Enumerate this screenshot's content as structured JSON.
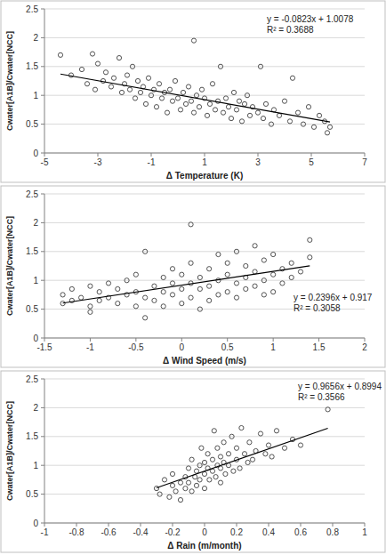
{
  "chart_data": [
    {
      "type": "scatter",
      "x_label": "Δ Temperature (K)",
      "y_label": "Cwater[A1B]/Cwater[NCC]",
      "marker": "circle-open",
      "color": "#404040",
      "grid": true,
      "xlim": [
        -5,
        7
      ],
      "xticks": [
        -5,
        -3,
        -1,
        1,
        3,
        5,
        7
      ],
      "ylim": [
        0,
        2.5
      ],
      "yticks": [
        0,
        0.5,
        1,
        1.5,
        2,
        2.5
      ],
      "trendline": {
        "slope": -0.0823,
        "intercept": 1.0078
      },
      "annotations": [
        "y = -0.0823x + 1.0078",
        "R² = 0.3688"
      ],
      "x": [
        -4.4,
        -4.0,
        -3.6,
        -3.4,
        -3.2,
        -3.1,
        -3.0,
        -2.8,
        -2.7,
        -2.5,
        -2.4,
        -2.2,
        -2.1,
        -2.0,
        -1.9,
        -1.8,
        -1.7,
        -1.6,
        -1.5,
        -1.4,
        -1.3,
        -1.2,
        -1.1,
        -1.0,
        -0.9,
        -0.8,
        -0.7,
        -0.6,
        -0.5,
        -0.4,
        -0.3,
        -0.2,
        -0.1,
        0.0,
        0.1,
        0.2,
        0.3,
        0.4,
        0.5,
        0.6,
        0.6,
        0.7,
        0.8,
        0.9,
        1.0,
        1.1,
        1.2,
        1.3,
        1.4,
        1.5,
        1.6,
        1.7,
        1.8,
        1.9,
        2.0,
        2.1,
        2.2,
        2.3,
        2.4,
        2.5,
        2.6,
        2.7,
        2.8,
        3.0,
        3.1,
        3.2,
        3.3,
        3.5,
        3.6,
        3.8,
        4.0,
        4.2,
        4.3,
        4.5,
        4.7,
        4.9,
        5.1,
        5.3,
        5.5,
        5.7,
        5.6
      ],
      "values": [
        1.7,
        1.35,
        1.45,
        1.2,
        1.72,
        1.1,
        1.55,
        1.25,
        1.4,
        1.15,
        1.3,
        1.65,
        1.05,
        1.2,
        1.35,
        1.1,
        1.5,
        0.95,
        1.25,
        1.05,
        1.15,
        0.85,
        1.3,
        1.0,
        1.1,
        0.8,
        1.2,
        0.95,
        1.05,
        0.7,
        1.1,
        0.9,
        1.25,
        0.95,
        0.75,
        1.05,
        0.85,
        1.15,
        0.9,
        1.95,
        0.7,
        1.0,
        0.8,
        1.1,
        0.95,
        0.65,
        0.85,
        1.2,
        0.75,
        0.9,
        1.5,
        0.7,
        0.95,
        0.8,
        0.6,
        1.05,
        0.75,
        0.9,
        0.55,
        0.85,
        1.0,
        0.65,
        0.8,
        0.7,
        1.5,
        0.6,
        0.85,
        0.5,
        0.75,
        0.65,
        0.9,
        0.55,
        1.3,
        0.7,
        0.5,
        0.8,
        0.45,
        0.65,
        0.55,
        0.45,
        0.35
      ]
    },
    {
      "type": "scatter",
      "x_label": "Δ Wind Speed (m/s)",
      "y_label": "Cwater[A1B]/Cwater[NCC]",
      "marker": "circle-open",
      "color": "#404040",
      "grid": true,
      "xlim": [
        -1.5,
        2
      ],
      "xticks": [
        -1.5,
        -1,
        -0.5,
        0,
        0.5,
        1,
        1.5,
        2
      ],
      "ylim": [
        0,
        2.5
      ],
      "yticks": [
        0,
        0.5,
        1,
        1.5,
        2,
        2.5
      ],
      "trendline": {
        "slope": 0.2396,
        "intercept": 0.917
      },
      "annotations": [
        "y = 0.2396x + 0.917",
        "R² = 0.3058"
      ],
      "x": [
        -1.3,
        -1.3,
        -1.2,
        -1.2,
        -1.1,
        -1.0,
        -1.0,
        -1.0,
        -0.9,
        -0.9,
        -0.8,
        -0.8,
        -0.7,
        -0.7,
        -0.6,
        -0.6,
        -0.5,
        -0.5,
        -0.5,
        -0.4,
        -0.4,
        -0.4,
        -0.3,
        -0.3,
        -0.2,
        -0.2,
        -0.2,
        -0.1,
        -0.1,
        -0.1,
        0.0,
        0.0,
        0.0,
        0.1,
        0.1,
        0.1,
        0.1,
        0.2,
        0.2,
        0.2,
        0.3,
        0.3,
        0.3,
        0.4,
        0.4,
        0.4,
        0.5,
        0.5,
        0.5,
        0.6,
        0.6,
        0.6,
        0.7,
        0.7,
        0.7,
        0.8,
        0.8,
        0.8,
        0.9,
        0.9,
        0.9,
        1.0,
        1.0,
        1.0,
        1.1,
        1.1,
        1.2,
        1.2,
        1.3,
        1.4,
        1.4
      ],
      "values": [
        0.75,
        0.6,
        0.85,
        0.65,
        0.7,
        0.9,
        0.55,
        0.45,
        0.8,
        0.65,
        0.95,
        0.7,
        0.6,
        0.85,
        0.75,
        1.0,
        0.55,
        0.8,
        1.1,
        0.35,
        0.7,
        1.5,
        0.9,
        0.65,
        0.8,
        1.05,
        0.55,
        0.95,
        0.75,
        1.2,
        0.85,
        1.1,
        0.6,
        1.97,
        0.95,
        0.7,
        1.3,
        0.85,
        1.05,
        0.5,
        0.9,
        1.2,
        0.65,
        1.0,
        1.45,
        0.75,
        1.1,
        0.8,
        1.3,
        0.95,
        1.5,
        0.7,
        1.05,
        1.25,
        0.85,
        1.6,
        0.9,
        1.15,
        1.0,
        1.35,
        0.75,
        1.1,
        1.45,
        0.8,
        1.2,
        0.95,
        1.3,
        1.05,
        1.15,
        1.7,
        1.4
      ]
    },
    {
      "type": "scatter",
      "x_label": "Δ Rain (m/month)",
      "y_label": "Cwater[A1B]/Cwater[NCC]",
      "marker": "circle-open",
      "color": "#404040",
      "grid": true,
      "xlim": [
        -1,
        1
      ],
      "xticks": [
        -1,
        -0.8,
        -0.6,
        -0.4,
        -0.2,
        0,
        0.2,
        0.4,
        0.6,
        0.8,
        1
      ],
      "ylim": [
        0,
        2.5
      ],
      "yticks": [
        0,
        0.5,
        1,
        1.5,
        2,
        2.5
      ],
      "trendline": {
        "slope": 0.9656,
        "intercept": 0.8994
      },
      "annotations": [
        "y = 0.9656x + 0.8994",
        "R² = 0.3566"
      ],
      "x": [
        -0.3,
        -0.28,
        -0.25,
        -0.22,
        -0.2,
        -0.2,
        -0.18,
        -0.15,
        -0.15,
        -0.12,
        -0.12,
        -0.1,
        -0.1,
        -0.08,
        -0.08,
        -0.06,
        -0.05,
        -0.05,
        -0.03,
        -0.03,
        -0.02,
        0.0,
        0.0,
        0.0,
        0.02,
        0.02,
        0.03,
        0.05,
        0.05,
        0.06,
        0.07,
        0.08,
        0.08,
        0.1,
        0.1,
        0.1,
        0.12,
        0.12,
        0.13,
        0.15,
        0.15,
        0.17,
        0.18,
        0.2,
        0.2,
        0.22,
        0.23,
        0.25,
        0.27,
        0.28,
        0.3,
        0.32,
        0.35,
        0.38,
        0.4,
        0.42,
        0.45,
        0.5,
        0.55,
        0.6,
        0.77
      ],
      "values": [
        0.6,
        0.5,
        0.75,
        0.45,
        0.65,
        0.85,
        0.55,
        0.7,
        0.4,
        0.8,
        0.6,
        0.95,
        0.7,
        0.55,
        1.1,
        0.8,
        0.9,
        0.65,
        1.0,
        0.75,
        1.3,
        0.85,
        1.05,
        0.6,
        0.95,
        1.2,
        0.75,
        1.1,
        0.9,
        1.6,
        0.8,
        1.0,
        1.3,
        0.95,
        1.15,
        0.7,
        1.05,
        1.4,
        0.85,
        1.2,
        1.0,
        1.5,
        0.9,
        1.1,
        1.3,
        0.95,
        1.65,
        1.2,
        1.05,
        1.4,
        1.1,
        1.25,
        1.55,
        1.2,
        1.35,
        1.15,
        1.6,
        1.3,
        1.45,
        1.35,
        1.97
      ]
    }
  ]
}
